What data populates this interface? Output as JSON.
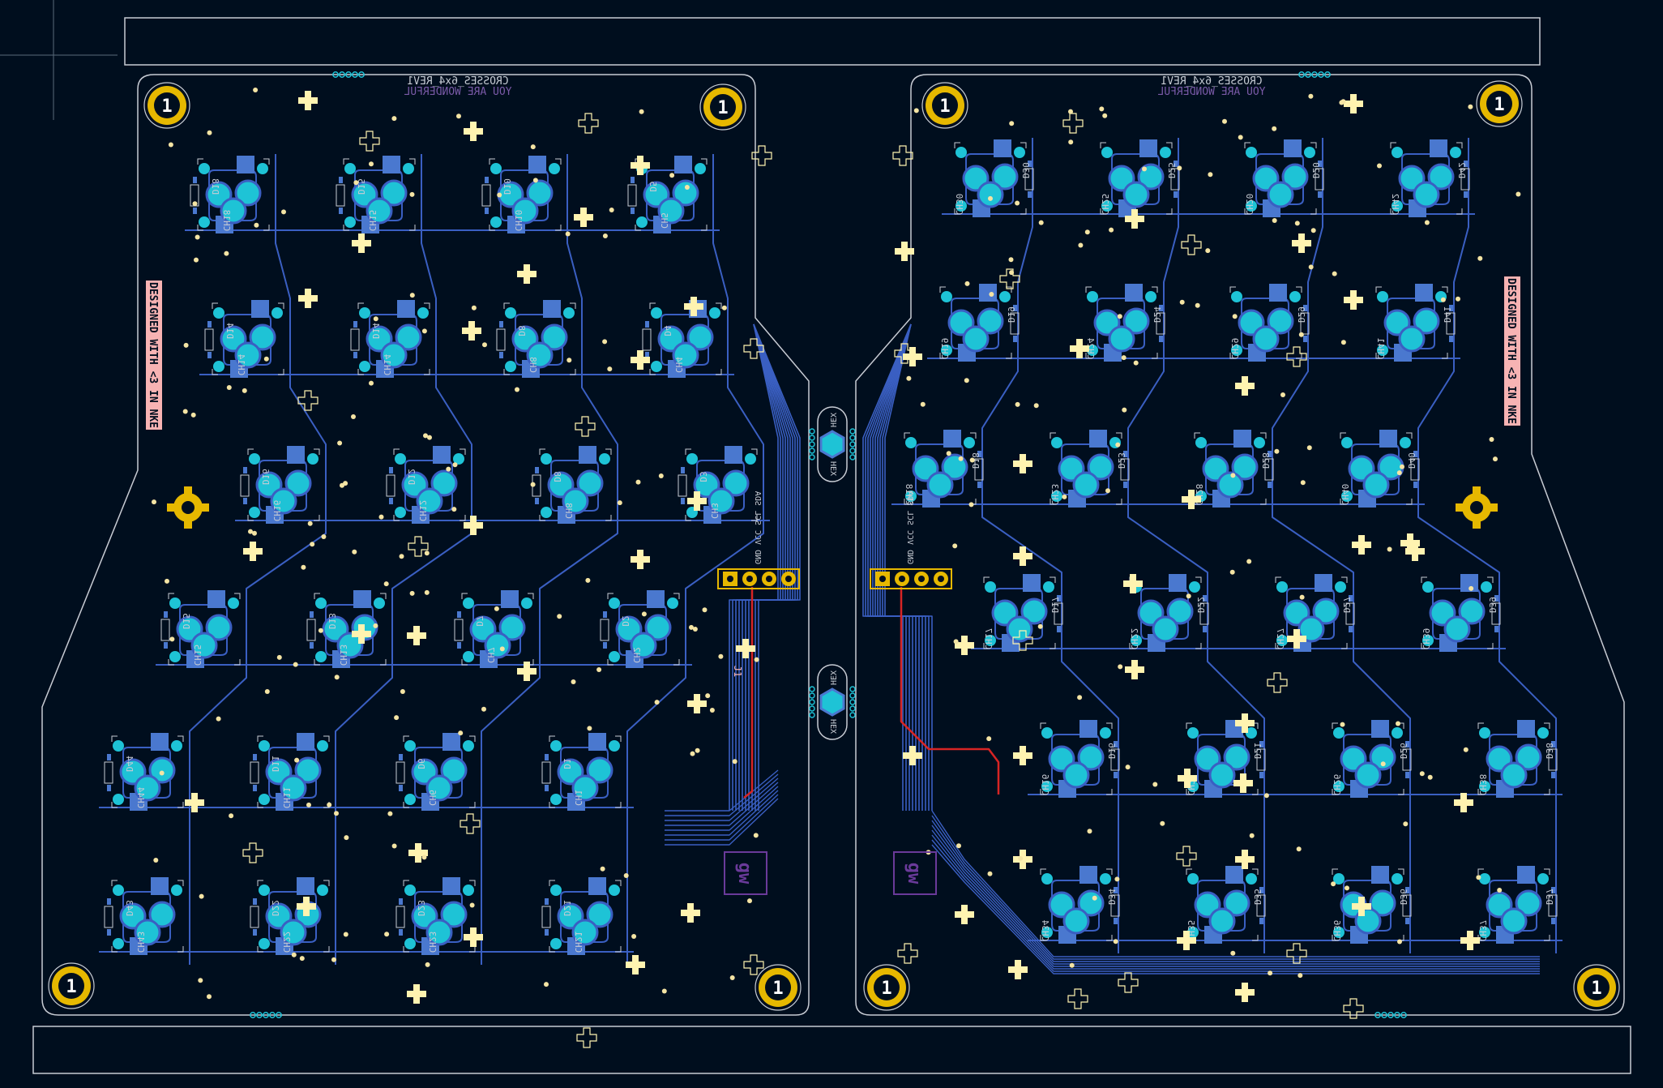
{
  "colors": {
    "background": "#000e1e",
    "outline": "#c8ccd4",
    "trace": "#3a5fc2",
    "trace_front": "#d72424",
    "pad_cyan": "#1ec3d6",
    "pad_square": "#4a78cf",
    "silk_yellow": "#fff3b0",
    "gold": "#e6b800",
    "pink": "#f7b3b3",
    "purple": "#6a3a9a",
    "via": "#f4e4a4"
  },
  "labels": {
    "left_title": "CROSSES_6x4_REV1",
    "left_subtitle": "YOU ARE WONDERFUL",
    "right_title": "CROSSES_6x4_REV1",
    "right_subtitle": "YOU ARE WONDERFUL",
    "designed_left": "DESIGNED WITH <3 IN NKE",
    "designed_right": "DESIGNED WITH <3 IN NKE",
    "hex_label": "HEX",
    "connector_left": "GND VCC SCL SDA",
    "connector_right": "GND VCC SCL SDA",
    "connector_left_id": "J1",
    "mount_label": "1",
    "logo_mark": "gw"
  },
  "left_keys": [
    {
      "s": "CH18",
      "d": "D18"
    },
    {
      "s": "CH15",
      "d": "D15"
    },
    {
      "s": "CH10",
      "d": "D10"
    },
    {
      "s": "CH5",
      "d": "D5"
    },
    {
      "s": "CH14",
      "d": "D14"
    },
    {
      "s": "CH14",
      "d": "D14"
    },
    {
      "s": "CH8",
      "d": "D8"
    },
    {
      "s": "CH4",
      "d": "D4"
    },
    {
      "s": "CH16",
      "d": "D16"
    },
    {
      "s": "CH12",
      "d": "D12"
    },
    {
      "s": "CH8",
      "d": "D8"
    },
    {
      "s": "CH3",
      "d": "D3"
    },
    {
      "s": "CH15",
      "d": "D15"
    },
    {
      "s": "CH13",
      "d": "D13"
    },
    {
      "s": "CH7",
      "d": "D7"
    },
    {
      "s": "CH2",
      "d": "D2"
    },
    {
      "s": "CH44",
      "d": "D44"
    },
    {
      "s": "CH11",
      "d": "D11"
    },
    {
      "s": "CH6",
      "d": "D6"
    },
    {
      "s": "CH1",
      "d": "D1"
    },
    {
      "s": "CH43",
      "d": "D43"
    },
    {
      "s": "CH22",
      "d": "D22"
    },
    {
      "s": "CH23",
      "d": "D23"
    },
    {
      "s": "CH21",
      "d": "D21"
    }
  ],
  "right_keys": [
    {
      "s": "CH30",
      "d": "D30"
    },
    {
      "s": "CH25",
      "d": "D25"
    },
    {
      "s": "CH20",
      "d": "D20"
    },
    {
      "s": "CH42",
      "d": "D42"
    },
    {
      "s": "CH19",
      "d": "D19"
    },
    {
      "s": "CH24",
      "d": "D24"
    },
    {
      "s": "CH29",
      "d": "D29"
    },
    {
      "s": "CH41",
      "d": "D41"
    },
    {
      "s": "CH18",
      "d": "D18"
    },
    {
      "s": "CH23",
      "d": "D23"
    },
    {
      "s": "CH28",
      "d": "D28"
    },
    {
      "s": "CH40",
      "d": "D40"
    },
    {
      "s": "CH17",
      "d": "D17"
    },
    {
      "s": "CH22",
      "d": "D22"
    },
    {
      "s": "CH27",
      "d": "D27"
    },
    {
      "s": "CH39",
      "d": "D39"
    },
    {
      "s": "CH16",
      "d": "D16"
    },
    {
      "s": "CH21",
      "d": "D21"
    },
    {
      "s": "CH26",
      "d": "D26"
    },
    {
      "s": "CH38",
      "d": "D38"
    },
    {
      "s": "CH34",
      "d": "D34"
    },
    {
      "s": "CH35",
      "d": "D35"
    },
    {
      "s": "CH36",
      "d": "D36"
    },
    {
      "s": "CH37",
      "d": "D37"
    }
  ]
}
